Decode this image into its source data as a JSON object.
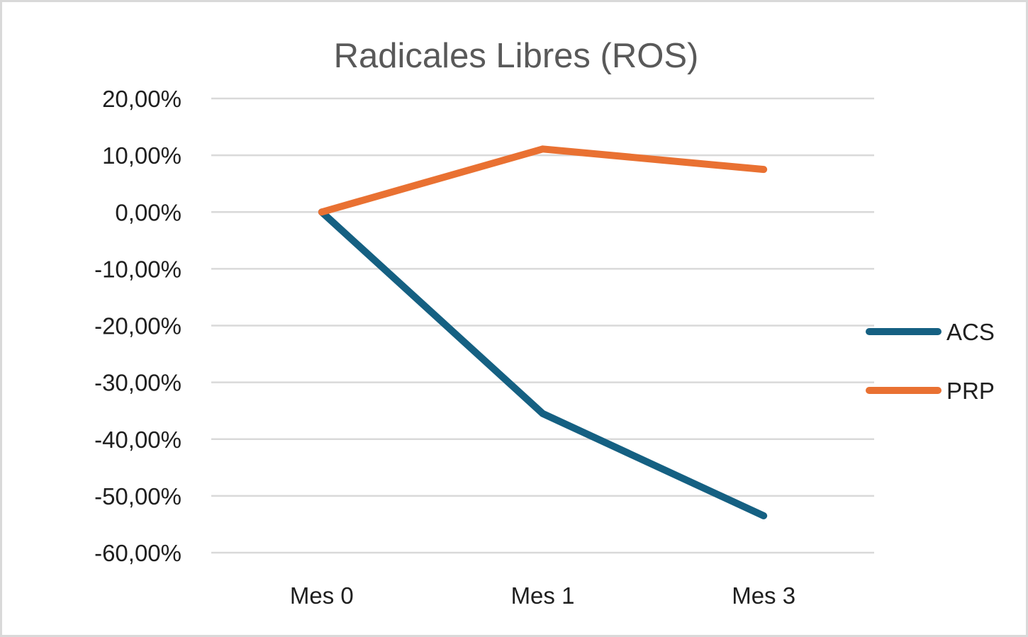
{
  "page": {
    "background": "#ffffff",
    "border_color": "#d9d9d9"
  },
  "chart_data": {
    "type": "line",
    "title": "Radicales Libres (ROS)",
    "categories": [
      "Mes 0",
      "Mes 1",
      "Mes 3"
    ],
    "series": [
      {
        "name": "ACS",
        "color": "#156082",
        "values": [
          0,
          -35.5,
          -53.5
        ]
      },
      {
        "name": "PRP",
        "color": "#E97132",
        "values": [
          0,
          11.1,
          7.5
        ]
      }
    ],
    "xlabel": "",
    "ylabel": "",
    "ylim": [
      -60,
      20
    ],
    "y_ticks": [
      {
        "label": "20,00%",
        "value": 20
      },
      {
        "label": "10,00%",
        "value": 10
      },
      {
        "label": "0,00%",
        "value": 0
      },
      {
        "label": "-10,00%",
        "value": -10
      },
      {
        "label": "-20,00%",
        "value": -20
      },
      {
        "label": "-30,00%",
        "value": -30
      },
      {
        "label": "-40,00%",
        "value": -40
      },
      {
        "label": "-50,00%",
        "value": -50
      },
      {
        "label": "-60,00%",
        "value": -60
      }
    ],
    "grid": true,
    "legend_position": "right",
    "legend": [
      "ACS",
      "PRP"
    ],
    "styles": {
      "title_color": "#595959",
      "axis_text_color": "#1f1f1f",
      "gridline_color": "#d9d9d9"
    }
  }
}
